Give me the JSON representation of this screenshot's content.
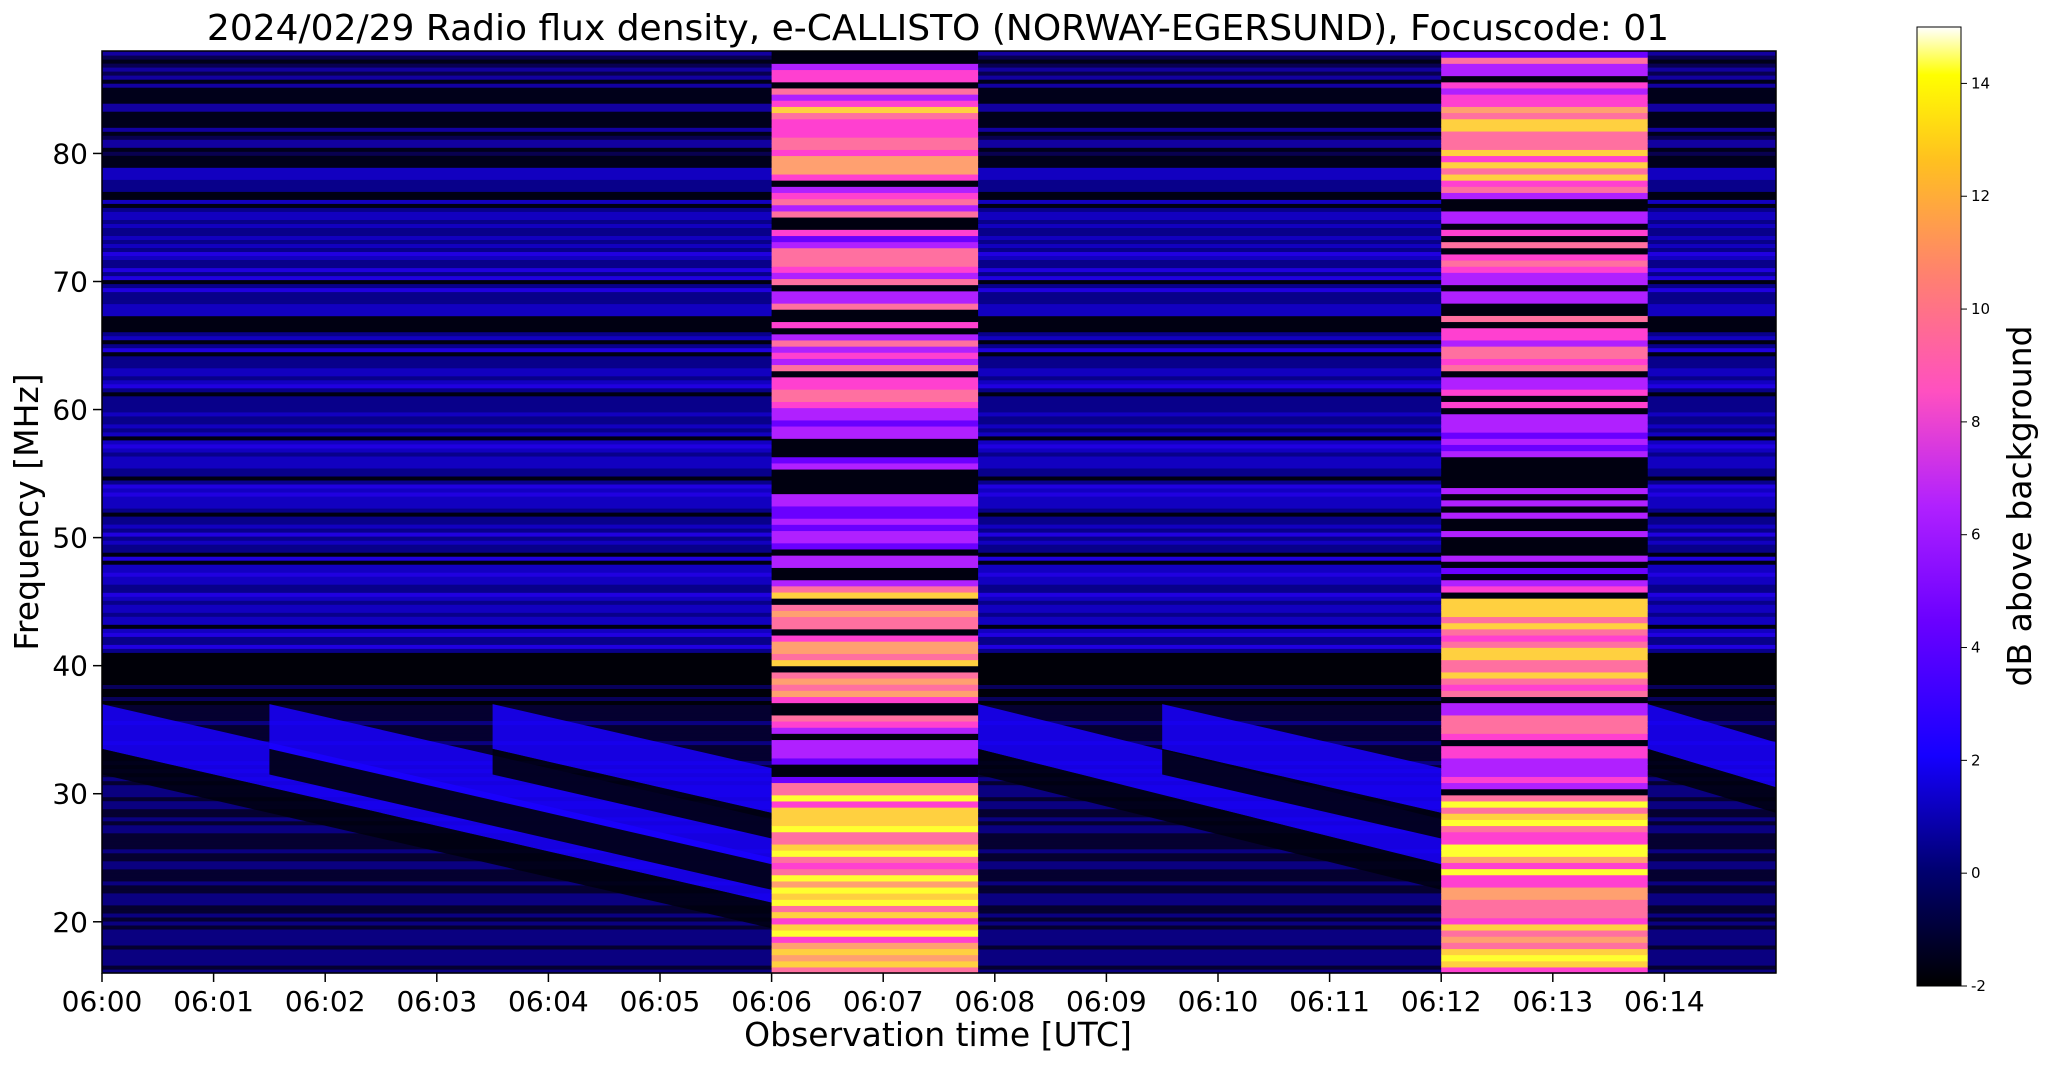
{
  "chart_data": {
    "type": "heatmap",
    "title": "2024/02/29  Radio flux density, e-CALLISTO (NORWAY-EGERSUND), Focuscode: 01",
    "xlabel": "Observation time [UTC]",
    "ylabel": "Frequency [MHz]",
    "x_ticks": [
      "06:00",
      "06:01",
      "06:02",
      "06:03",
      "06:04",
      "06:05",
      "06:06",
      "06:07",
      "06:08",
      "06:09",
      "06:10",
      "06:11",
      "06:12",
      "06:13",
      "06:14"
    ],
    "xlim_minutes": [
      0,
      15
    ],
    "y_ticks": [
      20,
      30,
      40,
      50,
      60,
      70,
      80
    ],
    "ylim": [
      16,
      88
    ],
    "colorbar": {
      "label": "dB above background",
      "ticks": [
        -2,
        0,
        2,
        4,
        6,
        8,
        10,
        12,
        14
      ],
      "range": [
        -2,
        15
      ],
      "colormap": "gnuplot2"
    },
    "bright_intervals_minutes": [
      [
        6.0,
        7.85
      ],
      [
        12.0,
        13.85
      ]
    ],
    "slanted_bands": [
      {
        "start_min": 0.0,
        "end_min": 6.0,
        "f_start": 37,
        "f_end": 25
      },
      {
        "start_min": 1.5,
        "end_min": 6.0,
        "f_start": 37,
        "f_end": 28
      },
      {
        "start_min": 3.5,
        "end_min": 6.0,
        "f_start": 37,
        "f_end": 32
      },
      {
        "start_min": 7.85,
        "end_min": 12.0,
        "f_start": 37,
        "f_end": 28
      },
      {
        "start_min": 9.5,
        "end_min": 12.0,
        "f_start": 37,
        "f_end": 32
      },
      {
        "start_min": 13.85,
        "end_min": 15.0,
        "f_start": 37,
        "f_end": 34
      }
    ]
  }
}
